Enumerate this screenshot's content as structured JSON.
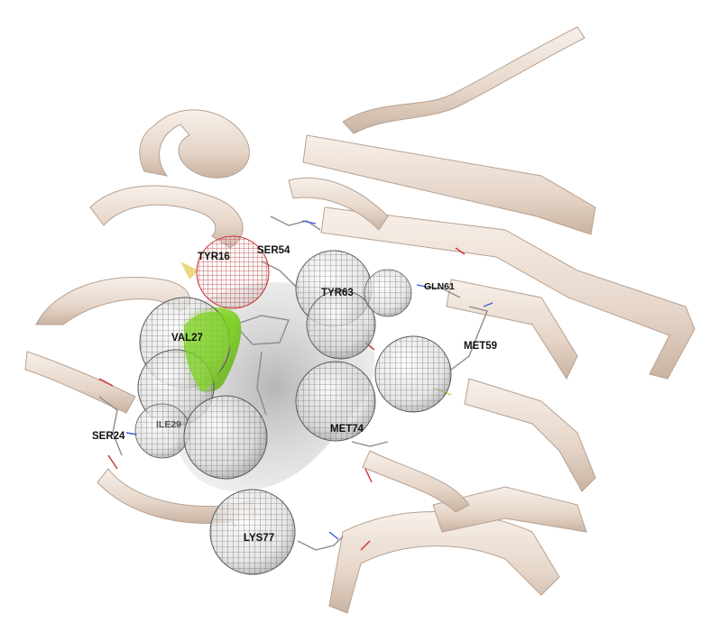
{
  "colors": {
    "background": "#ffffff",
    "ribbon": "#eee3da",
    "ribbon_shade": "#c9b3a2",
    "mesh": "#5a5a5a",
    "mesh_red": "#c83232",
    "ligand_green": "#7ed321",
    "surface_grey": "#9a9a9a"
  },
  "residues": [
    {
      "id": "tyr",
      "label": "TYR16"
    },
    {
      "id": "ser54",
      "label": "SER54"
    },
    {
      "id": "tyr63",
      "label": "TYR63"
    },
    {
      "id": "gln61",
      "label": "GLN61"
    },
    {
      "id": "val27",
      "label": "VAL27"
    },
    {
      "id": "met59",
      "label": "MET59"
    },
    {
      "id": "ile29",
      "label": "ILE29"
    },
    {
      "id": "met74",
      "label": "MET74"
    },
    {
      "id": "ser24",
      "label": "SER24"
    },
    {
      "id": "lys77",
      "label": "LYS77"
    }
  ]
}
